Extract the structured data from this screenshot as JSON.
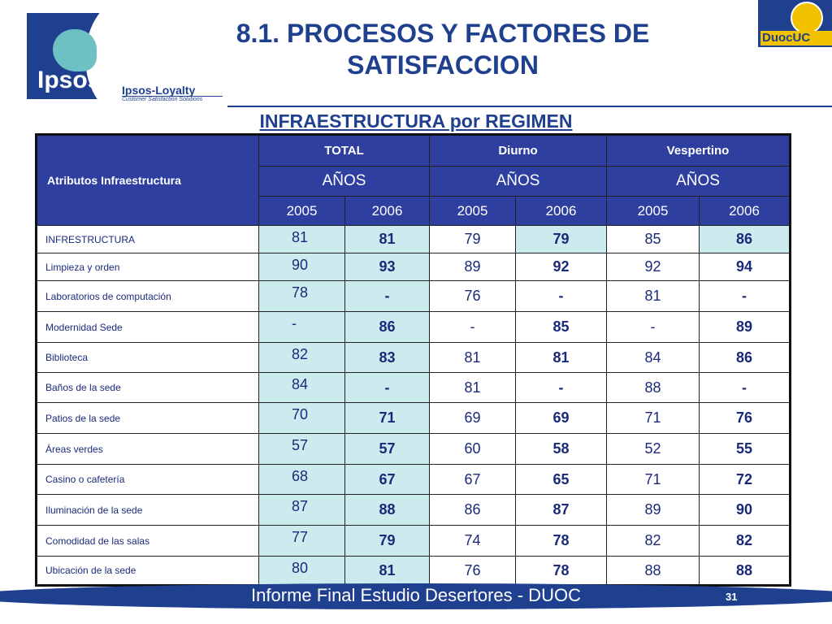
{
  "header": {
    "ipsos_logo_text": "Ipsos",
    "loyalty_title": "Ipsos-Loyalty",
    "loyalty_sub": "Customer Satisfaction Solutions",
    "title_line1": "8.1. PROCESOS Y FACTORES DE",
    "title_line2": "SATISFACCION",
    "duoc_logo_text": "DuocUC"
  },
  "subtitle": "INFRAESTRUCTURA por REGIMEN",
  "table": {
    "attr_header": "Atributos Infraestructura",
    "groups": [
      "TOTAL",
      "Diurno",
      "Vespertino"
    ],
    "anos": [
      "AÑOS",
      "AÑOS",
      "AÑOS"
    ],
    "years": [
      "2005",
      "2006",
      "2005",
      "2006",
      "2005",
      "2006"
    ],
    "rows": [
      {
        "label": "INFRESTRUCTURA",
        "v": [
          "81",
          "81",
          "79",
          "79",
          "85",
          "86"
        ]
      },
      {
        "label": "Limpieza y orden",
        "v": [
          "90",
          "93",
          "89",
          "92",
          "92",
          "94"
        ]
      },
      {
        "label": "Laboratorios de computación",
        "v": [
          "78",
          "-",
          "76",
          "-",
          "81",
          "-"
        ]
      },
      {
        "label": "Modernidad  Sede",
        "v": [
          "-",
          "86",
          "-",
          "85",
          "-",
          "89"
        ]
      },
      {
        "label": "Biblioteca",
        "v": [
          "82",
          "83",
          "81",
          "81",
          "84",
          "86"
        ]
      },
      {
        "label": "Baños de la sede",
        "v": [
          "84",
          "-",
          "81",
          "-",
          "88",
          "-"
        ]
      },
      {
        "label": "Patios de la sede",
        "v": [
          "70",
          "71",
          "69",
          "69",
          "71",
          "76"
        ]
      },
      {
        "label": "Áreas verdes",
        "v": [
          "57",
          "57",
          "60",
          "58",
          "52",
          "55"
        ]
      },
      {
        "label": "Casino o cafetería",
        "v": [
          "68",
          "67",
          "67",
          "65",
          "71",
          "72"
        ]
      },
      {
        "label": "Iluminación de la sede",
        "v": [
          "87",
          "88",
          "86",
          "87",
          "89",
          "90"
        ]
      },
      {
        "label": "Comodidad de las salas",
        "v": [
          "77",
          "79",
          "74",
          "78",
          "82",
          "82"
        ]
      },
      {
        "label": "Ubicación de la sede",
        "v": [
          "80",
          "81",
          "76",
          "78",
          "88",
          "88"
        ]
      }
    ]
  },
  "footer": {
    "text": "Informe Final Estudio Desertores - DUOC",
    "page": "31"
  },
  "colors": {
    "brand_blue": "#1f3f8f",
    "header_bg": "#2e3fa0",
    "highlight_cell": "#ccebee",
    "duoc_yellow": "#f2c200"
  }
}
